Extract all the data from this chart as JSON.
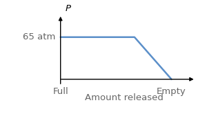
{
  "line_x": [
    0.0,
    0.58,
    0.87,
    0.87
  ],
  "line_y": [
    0.65,
    0.65,
    0.0,
    0.0
  ],
  "line_color": "#5b8fc9",
  "line_width": 1.8,
  "label_65atm": "65 atm",
  "label_full": "Full",
  "label_empty": "Empty",
  "label_amount": "Amount released",
  "label_P": "P",
  "xlim": [
    -0.02,
    1.1
  ],
  "ylim": [
    -0.22,
    1.1
  ],
  "text_color": "#666666",
  "fontsize": 9.5,
  "background_color": "#ffffff"
}
